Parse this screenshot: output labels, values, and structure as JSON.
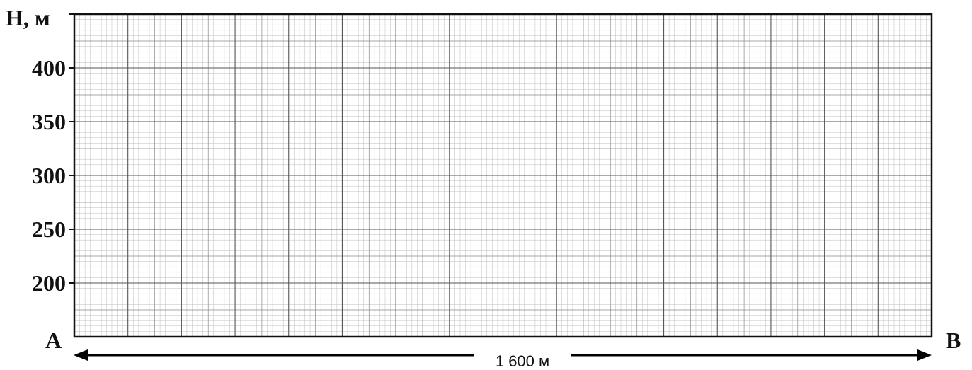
{
  "chart_data": {
    "type": "line",
    "title": "",
    "ylabel": "H, м",
    "yticks": [
      200,
      250,
      300,
      350,
      400
    ],
    "ylim": [
      150,
      450
    ],
    "xlim": [
      0,
      1600
    ],
    "series": [],
    "grid": true,
    "start_point_label": "A",
    "end_point_label": "B",
    "distance_label": "1 600 м"
  }
}
